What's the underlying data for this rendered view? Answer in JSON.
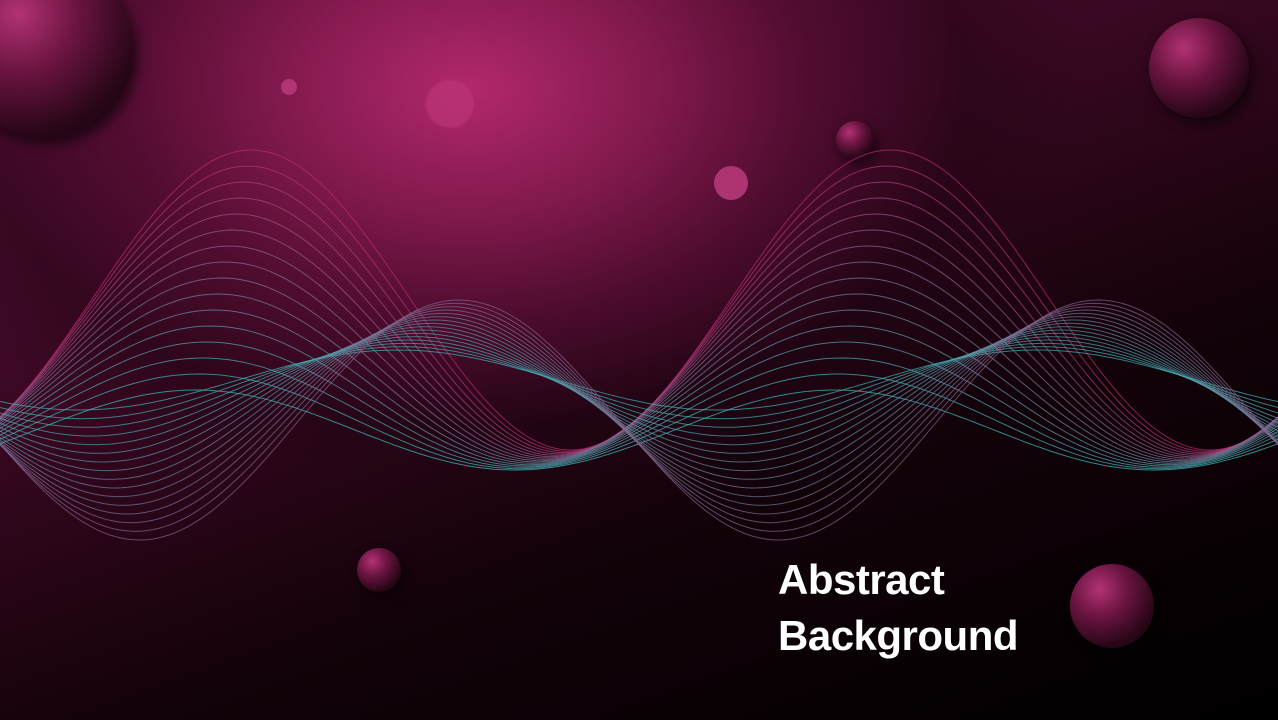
{
  "title": {
    "line1": "Abstract",
    "line2": "Background"
  },
  "colors": {
    "magenta": "#b82a6e",
    "teal": "#3fb6b8",
    "background": "#000000",
    "text": "#ffffff"
  }
}
